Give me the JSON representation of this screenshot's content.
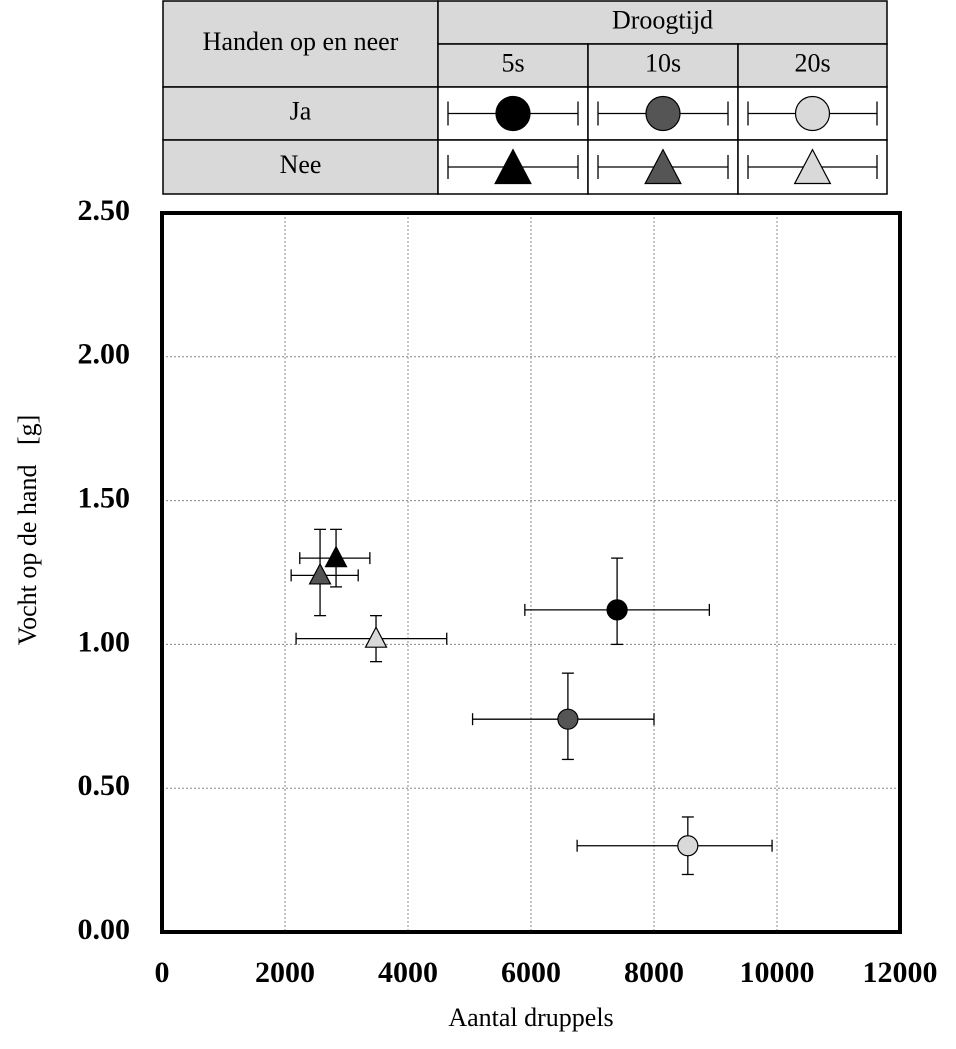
{
  "chart_data": {
    "type": "scatter",
    "xlabel": "Aantal druppels",
    "ylabel": "Vocht op de hand   [g]",
    "xlim": [
      0,
      12000
    ],
    "xticks": [
      0,
      2000,
      4000,
      6000,
      8000,
      10000,
      12000
    ],
    "ylim": [
      0,
      2.5
    ],
    "yticks": [
      {
        "value": 0,
        "label": "0.00"
      },
      {
        "value": 0.5,
        "label": "0.50"
      },
      {
        "value": 1,
        "label": "1.00"
      },
      {
        "value": 1.5,
        "label": "1.50"
      },
      {
        "value": 2,
        "label": "2.00"
      },
      {
        "value": 2.5,
        "label": "2.50"
      }
    ],
    "grid": true,
    "legend": {
      "title": "Handen op en neer",
      "header": "Droogtijd",
      "columns": [
        "5s",
        "10s",
        "20s"
      ],
      "rows": [
        "Ja",
        "Nee"
      ]
    },
    "series": [
      {
        "marker": "circle",
        "color": "#000000",
        "x": [
          7400
        ],
        "y": [
          1.12
        ],
        "xerr": [
          [
            1500,
            1500
          ]
        ],
        "yerr": [
          [
            0.12,
            0.18
          ]
        ]
      },
      {
        "marker": "circle",
        "color": "#555555",
        "x": [
          6600
        ],
        "y": [
          0.74
        ],
        "xerr": [
          [
            1550,
            1400
          ]
        ],
        "yerr": [
          [
            0.14,
            0.16
          ]
        ]
      },
      {
        "marker": "circle",
        "color": "#d9d9d9",
        "x": [
          8550
        ],
        "y": [
          0.3
        ],
        "xerr": [
          [
            1800,
            1370
          ]
        ],
        "yerr": [
          [
            0.1,
            0.1
          ]
        ]
      },
      {
        "marker": "triangle",
        "color": "#000000",
        "x": [
          2830
        ],
        "y": [
          1.3
        ],
        "xerr": [
          [
            590,
            550
          ]
        ],
        "yerr": [
          [
            0.1,
            0.1
          ]
        ]
      },
      {
        "marker": "triangle",
        "color": "#555555",
        "x": [
          2570
        ],
        "y": [
          1.24
        ],
        "xerr": [
          [
            470,
            620
          ]
        ],
        "yerr": [
          [
            0.14,
            0.16
          ]
        ]
      },
      {
        "marker": "triangle",
        "color": "#d9d9d9",
        "x": [
          3480
        ],
        "y": [
          1.02
        ],
        "xerr": [
          [
            1300,
            1150
          ]
        ],
        "yerr": [
          [
            0.08,
            0.08
          ]
        ]
      }
    ]
  }
}
